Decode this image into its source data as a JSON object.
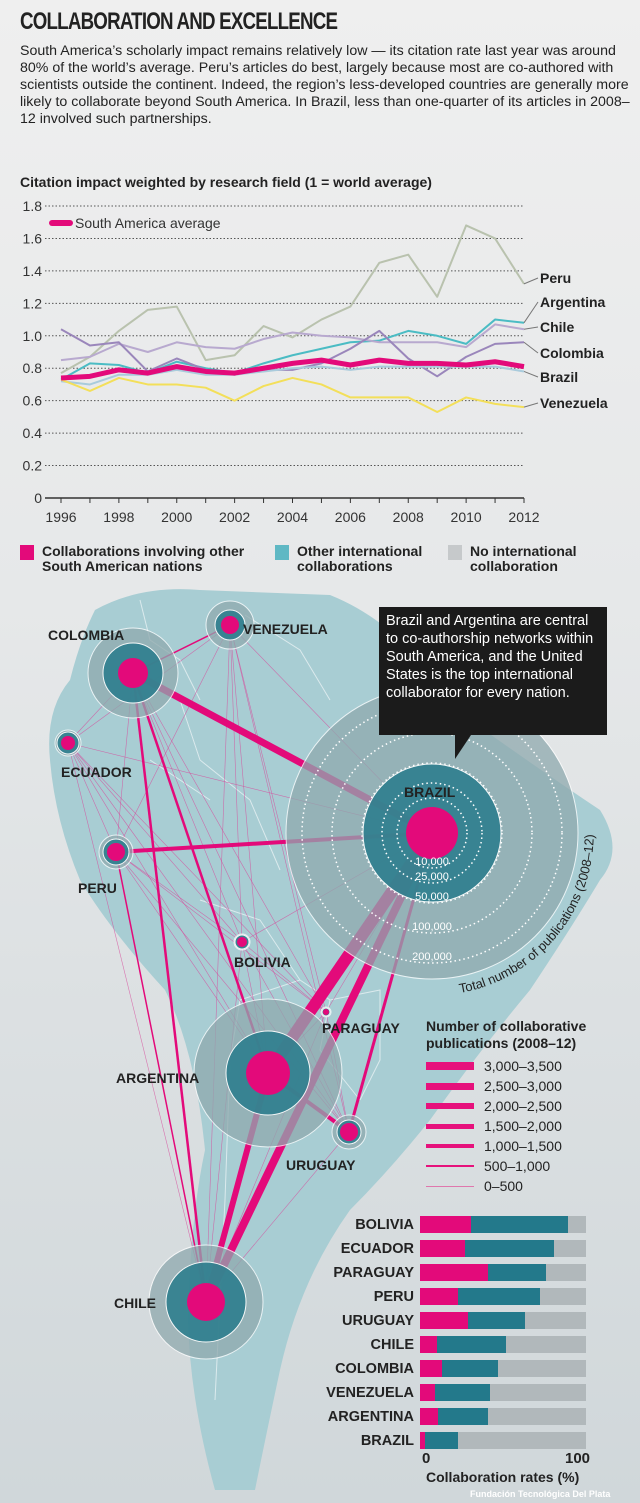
{
  "title": "COLLABORATION AND EXCELLENCE",
  "intro": "South America’s scholarly impact remains relatively low — its citation rate last year was around 80% of the world’s average. Peru’s articles do best, largely because most are co-authored with scientists outside the continent. Indeed, the region’s less-developed countries are generally more likely to collaborate beyond South America. In Brazil, less than one-quarter of its articles in 2008–12 involved such partnerships.",
  "colors": {
    "pink": "#e30a7a",
    "teal": "#23798b",
    "lightteal": "#5fb8c4",
    "gray": "#c6c9cb",
    "peru": "#b9c2ae",
    "argentina": "#4bbcc4",
    "chile": "#b8a9cf",
    "colombia": "#9a86bb",
    "brazil": "#a9cbdc",
    "venezuela": "#f3df5a"
  },
  "chart_data": {
    "type": "line",
    "title": "Citation impact weighted by research field (1 = world average)",
    "x": [
      1996,
      1997,
      1998,
      1999,
      2000,
      2001,
      2002,
      2003,
      2004,
      2005,
      2006,
      2007,
      2008,
      2009,
      2010,
      2011,
      2012
    ],
    "xticks": [
      "1996",
      "1998",
      "2000",
      "2002",
      "2004",
      "2006",
      "2008",
      "2010",
      "2012"
    ],
    "yticks": [
      "0",
      "0.2",
      "0.4",
      "0.6",
      "0.8",
      "1.0",
      "1.2",
      "1.4",
      "1.6",
      "1.8"
    ],
    "ylim": [
      0,
      1.8
    ],
    "legend": "South America average",
    "series": [
      {
        "name": "Peru",
        "color": "#b9c2ae",
        "values": [
          0.77,
          0.87,
          1.03,
          1.16,
          1.18,
          0.85,
          0.88,
          1.06,
          0.99,
          1.1,
          1.18,
          1.45,
          1.5,
          1.24,
          1.68,
          1.6,
          1.32
        ]
      },
      {
        "name": "Argentina",
        "color": "#4bbcc4",
        "values": [
          0.73,
          0.83,
          0.82,
          0.77,
          0.84,
          0.8,
          0.77,
          0.83,
          0.88,
          0.92,
          0.96,
          0.97,
          1.03,
          1.0,
          0.95,
          1.1,
          1.08
        ]
      },
      {
        "name": "Chile",
        "color": "#b8a9cf",
        "values": [
          0.85,
          0.87,
          0.95,
          0.9,
          0.96,
          0.93,
          0.92,
          0.98,
          1.02,
          1.0,
          0.99,
          0.96,
          0.96,
          0.96,
          0.93,
          1.07,
          1.04
        ]
      },
      {
        "name": "Colombia",
        "color": "#9a86bb",
        "values": [
          1.04,
          0.94,
          0.96,
          0.78,
          0.86,
          0.79,
          0.76,
          0.79,
          0.79,
          0.83,
          0.92,
          1.03,
          0.86,
          0.75,
          0.87,
          0.95,
          0.96
        ]
      },
      {
        "name": "Brazil",
        "color": "#a9cbdc",
        "values": [
          0.72,
          0.7,
          0.76,
          0.76,
          0.79,
          0.76,
          0.76,
          0.78,
          0.8,
          0.81,
          0.79,
          0.81,
          0.81,
          0.81,
          0.81,
          0.81,
          0.78
        ]
      },
      {
        "name": "Venezuela",
        "color": "#f3df5a",
        "values": [
          0.73,
          0.66,
          0.74,
          0.7,
          0.7,
          0.68,
          0.6,
          0.69,
          0.74,
          0.7,
          0.62,
          0.62,
          0.62,
          0.53,
          0.62,
          0.58,
          0.56
        ]
      },
      {
        "name": "South America average",
        "color": "#e30a7a",
        "values": [
          0.74,
          0.75,
          0.79,
          0.77,
          0.81,
          0.78,
          0.77,
          0.8,
          0.83,
          0.85,
          0.82,
          0.85,
          0.83,
          0.83,
          0.82,
          0.84,
          0.81
        ]
      }
    ]
  },
  "map_legend": [
    {
      "label": "Collaborations involving other South American nations",
      "color": "#e30a7a"
    },
    {
      "label": "Other international collaborations",
      "color": "#5fb8c4"
    },
    {
      "label": "No international collaboration",
      "color": "#c6c9cb"
    }
  ],
  "callout": "Brazil and Argentina are central to co-authorship networks within South America, and the United States is the top international collaborator for every nation.",
  "countries": [
    {
      "name": "COLOMBIA"
    },
    {
      "name": "VENEZUELA"
    },
    {
      "name": "ECUADOR"
    },
    {
      "name": "PERU"
    },
    {
      "name": "BOLIVIA"
    },
    {
      "name": "BRAZIL"
    },
    {
      "name": "PARAGUAY"
    },
    {
      "name": "ARGENTINA"
    },
    {
      "name": "URUGUAY"
    },
    {
      "name": "CHILE"
    }
  ],
  "ring_labels": [
    "10,000",
    "25,000",
    "50,000",
    "100,000",
    "200,000"
  ],
  "ring_title": "Total number of publications (2008–12)",
  "width_legend": {
    "title": "Number of collaborative publications (2008–12)",
    "items": [
      "3,000–3,500",
      "2,500–3,000",
      "2,000–2,500",
      "1,500–2,000",
      "1,000–1,500",
      "500–1,000",
      "0–500"
    ]
  },
  "bars": {
    "axis_min": "0",
    "axis_max": "100",
    "xlabel": "Collaboration rates (%)",
    "rows": [
      {
        "name": "BOLIVIA",
        "sa": 31,
        "intl": 58,
        "none": 11
      },
      {
        "name": "ECUADOR",
        "sa": 27,
        "intl": 54,
        "none": 19
      },
      {
        "name": "PARAGUAY",
        "sa": 41,
        "intl": 35,
        "none": 24
      },
      {
        "name": "PERU",
        "sa": 23,
        "intl": 49,
        "none": 28
      },
      {
        "name": "URUGUAY",
        "sa": 29,
        "intl": 34,
        "none": 37
      },
      {
        "name": "CHILE",
        "sa": 10,
        "intl": 42,
        "none": 48
      },
      {
        "name": "COLOMBIA",
        "sa": 13,
        "intl": 34,
        "none": 53
      },
      {
        "name": "VENEZUELA",
        "sa": 9,
        "intl": 33,
        "none": 58
      },
      {
        "name": "ARGENTINA",
        "sa": 11,
        "intl": 30,
        "none": 59
      },
      {
        "name": "BRAZIL",
        "sa": 3,
        "intl": 20,
        "none": 77
      }
    ]
  },
  "watermark": "Fundación Tecnológica Del Plata"
}
